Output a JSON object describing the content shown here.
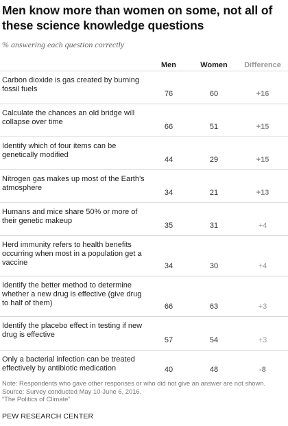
{
  "title": "Men know more than women on some, not all of these science knowledge questions",
  "subtitle": "% answering each question correctly",
  "columns": {
    "men": "Men",
    "women": "Women",
    "difference": "Difference"
  },
  "chart_data": {
    "type": "table",
    "columns": [
      "Men",
      "Women",
      "Difference"
    ],
    "rows": [
      {
        "question": "Carbon dioxide is gas created by burning fossil fuels",
        "men": "76",
        "women": "60",
        "difference": "+16",
        "bold": true
      },
      {
        "question": "Calculate the chances an old bridge will collapse over time",
        "men": "66",
        "women": "51",
        "difference": "+15",
        "bold": true
      },
      {
        "question": "Identify which of four items can be genetically modified",
        "men": "44",
        "women": "29",
        "difference": "+15",
        "bold": true
      },
      {
        "question": "Nitrogen gas makes up most of the Earth’s atmosphere",
        "men": "34",
        "women": "21",
        "difference": "+13",
        "bold": true
      },
      {
        "question": "Humans and mice share 50% or more of their genetic makeup",
        "men": "35",
        "women": "31",
        "difference": "+4",
        "bold": false
      },
      {
        "question": "Herd immunity refers to health benefits occurring when most  in a population get a vaccine",
        "men": "34",
        "women": "30",
        "difference": "+4",
        "bold": false
      },
      {
        "question": "Identify the better method to determine whether a new drug is effective (give drug to half of them)",
        "men": "66",
        "women": "63",
        "difference": "+3",
        "bold": false
      },
      {
        "question": "Identify the placebo effect in testing if new drug is effective",
        "men": "57",
        "women": "54",
        "difference": "+3",
        "bold": false
      },
      {
        "question": "Only a bacterial infection can be treated effectively by antibiotic medication",
        "men": "40",
        "women": "48",
        "difference": "-8",
        "bold": true
      }
    ]
  },
  "note_lines": [
    "Note: Respondents who gave other responses or who did not give an answer are not shown.",
    " Source: Survey conducted May 10-June 6, 2016.",
    "“The Politics of Climate”"
  ],
  "brand": "PEW RESEARCH CENTER"
}
